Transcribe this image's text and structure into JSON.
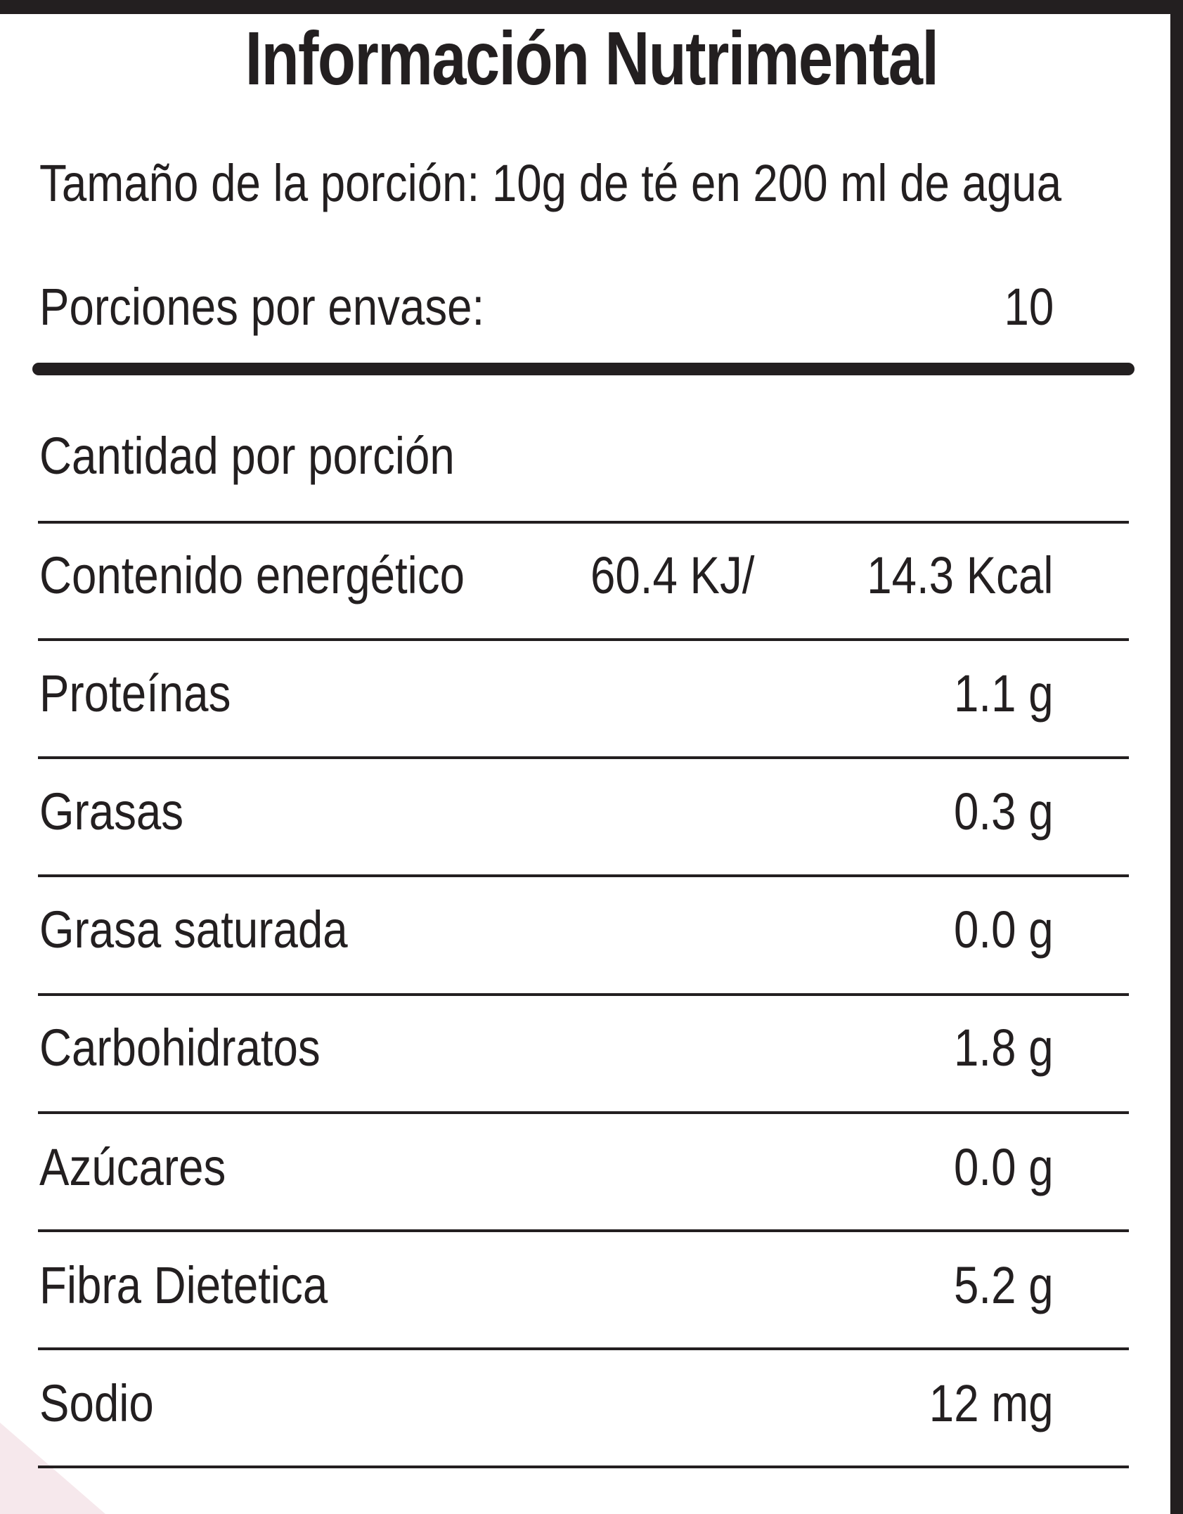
{
  "title": "Información Nutrimental",
  "serving_size": "Tamaño de la porción: 10g de té en 200 ml de agua",
  "servings_per_container": {
    "label": "Porciones por envase:",
    "value": "10"
  },
  "amount_per_serving": "Cantidad por porción",
  "energy": {
    "label": "Contenido energético",
    "kj": "60.4 KJ/",
    "kcal": "14.3 Kcal"
  },
  "nutrients": [
    {
      "label": "Proteínas",
      "value": "1.1 g"
    },
    {
      "label": "Grasas",
      "value": "0.3 g"
    },
    {
      "label": "Grasa saturada",
      "value": "0.0 g"
    },
    {
      "label": "Carbohidratos",
      "value": "1.8 g"
    },
    {
      "label": "Azúcares",
      "value": "0.0 g"
    },
    {
      "label": "Fibra Dietetica",
      "value": "5.2 g"
    },
    {
      "label": "Sodio",
      "value": "12 mg"
    }
  ],
  "colors": {
    "ink": "#231f20",
    "background": "#ffffff",
    "frame": "#231f20"
  }
}
